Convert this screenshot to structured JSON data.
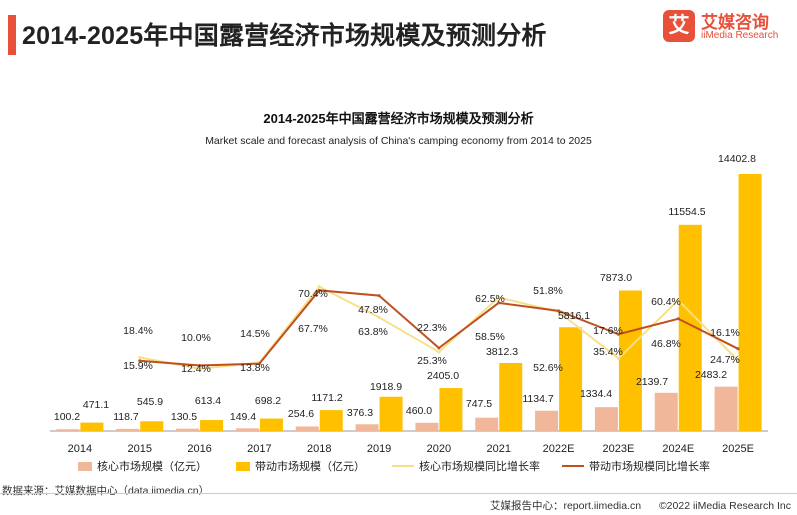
{
  "header": {
    "title": "2014-2025年中国露营经济市场规模及预测分析",
    "logo_mark": "艾",
    "logo_cn": "艾媒咨询",
    "logo_en": "iiMedia Research",
    "accent_color": "#e8503a"
  },
  "chart_data": {
    "type": "bar",
    "title": "2014-2025年中国露营经济市场规模及预测分析",
    "subtitle": "Market scale and forecast analysis of China's camping economy from 2014 to 2025",
    "categories": [
      "2014",
      "2015",
      "2016",
      "2017",
      "2018",
      "2019",
      "2020",
      "2021",
      "2022E",
      "2023E",
      "2024E",
      "2025E"
    ],
    "series": [
      {
        "name": "核心市场规模（亿元）",
        "kind": "bar",
        "color": "#f0b79a",
        "values": [
          100.2,
          118.7,
          130.5,
          149.4,
          254.6,
          376.3,
          460.0,
          747.5,
          1134.7,
          1334.4,
          2139.7,
          2483.2
        ],
        "labels": [
          "100.2",
          "118.7",
          "130.5",
          "149.4",
          "254.6",
          "376.3",
          "460.0",
          "747.5",
          "1134.7",
          "1334.4",
          "2139.7",
          "2483.2"
        ]
      },
      {
        "name": "带动市场规模（亿元）",
        "kind": "bar",
        "color": "#ffc000",
        "values": [
          471.1,
          545.9,
          613.4,
          698.2,
          1171.2,
          1918.9,
          2405.0,
          3812.3,
          5816.1,
          7873.0,
          11554.5,
          14402.8
        ],
        "labels": [
          "471.1",
          "545.9",
          "613.4",
          "698.2",
          "1171.2",
          "1918.9",
          "2405.0",
          "3812.3",
          "5816.1",
          "7873.0",
          "11554.5",
          "14402.8"
        ]
      },
      {
        "name": "核心市场规模同比增长率",
        "kind": "line",
        "color": "#f7e08a",
        "values": [
          null,
          18.4,
          10.0,
          14.5,
          70.4,
          47.8,
          22.3,
          62.5,
          51.8,
          17.6,
          60.4,
          16.1
        ],
        "labels": [
          "",
          "18.4%",
          "10.0%",
          "14.5%",
          "70.4%",
          "47.8%",
          "22.3%",
          "62.5%",
          "51.8%",
          "17.6%",
          "60.4%",
          "16.1%"
        ]
      },
      {
        "name": "带动市场规模同比增长率",
        "kind": "line",
        "color": "#c0501e",
        "values": [
          null,
          15.9,
          12.4,
          13.8,
          67.7,
          63.8,
          25.3,
          58.5,
          52.6,
          35.4,
          46.8,
          24.7
        ],
        "labels": [
          "",
          "15.9%",
          "12.4%",
          "13.8%",
          "67.7%",
          "63.8%",
          "25.3%",
          "58.5%",
          "52.6%",
          "35.4%",
          "46.8%",
          "24.7%"
        ]
      }
    ],
    "bar_axis_range": [
      0,
      16000
    ],
    "line_axis_range": [
      -60,
      140
    ],
    "grid": false,
    "legend_position": "bottom"
  },
  "footer": {
    "source": "数据来源：艾媒数据中心（data.iimedia.cn）",
    "report_center": "艾媒报告中心：report.iimedia.cn",
    "copyright": "©2022  iiMedia Research  Inc"
  }
}
